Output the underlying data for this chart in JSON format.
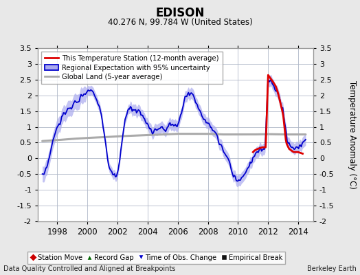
{
  "title": "EDISON",
  "subtitle": "40.276 N, 99.784 W (United States)",
  "ylabel": "Temperature Anomaly (°C)",
  "footer_left": "Data Quality Controlled and Aligned at Breakpoints",
  "footer_right": "Berkeley Earth",
  "ylim": [
    -2.0,
    3.5
  ],
  "xlim": [
    1996.7,
    2015.0
  ],
  "yticks": [
    -2,
    -1.5,
    -1,
    -0.5,
    0,
    0.5,
    1,
    1.5,
    2,
    2.5,
    3,
    3.5
  ],
  "xticks": [
    1998,
    2000,
    2002,
    2004,
    2006,
    2008,
    2010,
    2012,
    2014
  ],
  "bg_color": "#e8e8e8",
  "plot_bg_color": "#ffffff",
  "grid_color": "#b0b8c8",
  "legend1_entries": [
    "This Temperature Station (12-month average)",
    "Regional Expectation with 95% uncertainty",
    "Global Land (5-year average)"
  ],
  "legend2_entries": [
    "Station Move",
    "Record Gap",
    "Time of Obs. Change",
    "Empirical Break"
  ],
  "line_red_color": "#dd0000",
  "line_blue_color": "#0000cc",
  "shade_blue_color": "#aaaaee",
  "line_gray_color": "#aaaaaa",
  "blue_ctrl_x": [
    1997.0,
    1997.2,
    1997.5,
    1997.8,
    1998.1,
    1998.4,
    1998.7,
    1999.0,
    1999.3,
    1999.6,
    1999.9,
    2000.1,
    2000.4,
    2000.7,
    2000.9,
    2001.1,
    2001.4,
    2001.7,
    2002.0,
    2002.2,
    2002.5,
    2002.7,
    2002.9,
    2003.2,
    2003.5,
    2003.7,
    2003.9,
    2004.1,
    2004.3,
    2004.6,
    2004.9,
    2005.1,
    2005.4,
    2005.7,
    2005.9,
    2006.1,
    2006.3,
    2006.5,
    2006.7,
    2007.0,
    2007.3,
    2007.6,
    2007.9,
    2008.2,
    2008.5,
    2008.7,
    2009.0,
    2009.3,
    2009.5,
    2009.7,
    2010.0,
    2010.3,
    2010.5,
    2010.8,
    2011.0,
    2011.2,
    2011.5,
    2011.8,
    2012.0,
    2012.2,
    2012.4,
    2012.7,
    2013.0,
    2013.3,
    2013.6,
    2013.9,
    2014.2,
    2014.5
  ],
  "blue_ctrl_y": [
    -0.6,
    -0.5,
    0.1,
    0.7,
    1.1,
    1.4,
    1.5,
    1.7,
    1.8,
    2.0,
    2.1,
    2.2,
    2.1,
    1.8,
    1.5,
    0.8,
    -0.2,
    -0.5,
    -0.6,
    0.2,
    1.2,
    1.5,
    1.6,
    1.5,
    1.4,
    1.3,
    1.1,
    1.0,
    0.8,
    0.9,
    1.0,
    0.9,
    1.0,
    1.1,
    1.0,
    1.2,
    1.6,
    1.9,
    2.1,
    2.0,
    1.7,
    1.4,
    1.2,
    1.0,
    0.8,
    0.5,
    0.3,
    0.0,
    -0.2,
    -0.6,
    -0.7,
    -0.6,
    -0.4,
    -0.2,
    0.0,
    0.2,
    0.3,
    0.3,
    2.55,
    2.5,
    2.3,
    2.0,
    1.5,
    0.5,
    0.3,
    0.3,
    0.4,
    0.6
  ],
  "red_ctrl_x": [
    2011.0,
    2011.1,
    2011.3,
    2011.6,
    2011.85,
    2012.0,
    2012.15,
    2012.3,
    2012.5,
    2012.65,
    2012.8,
    2013.0,
    2013.2,
    2013.4,
    2013.7,
    2014.0,
    2014.3
  ],
  "red_ctrl_y": [
    0.2,
    0.25,
    0.3,
    0.35,
    0.35,
    2.65,
    2.55,
    2.45,
    2.3,
    2.1,
    1.8,
    1.4,
    0.5,
    0.3,
    0.2,
    0.2,
    0.15
  ],
  "gray_ctrl_x": [
    1997.0,
    1998.0,
    1999.0,
    2000.0,
    2001.0,
    2002.0,
    2003.0,
    2004.0,
    2005.0,
    2006.0,
    2007.0,
    2008.0,
    2009.0,
    2010.0,
    2011.0,
    2012.0,
    2013.0,
    2014.5
  ],
  "gray_ctrl_y": [
    0.55,
    0.58,
    0.62,
    0.65,
    0.67,
    0.7,
    0.72,
    0.74,
    0.76,
    0.78,
    0.78,
    0.78,
    0.76,
    0.76,
    0.76,
    0.77,
    0.76,
    0.76
  ]
}
